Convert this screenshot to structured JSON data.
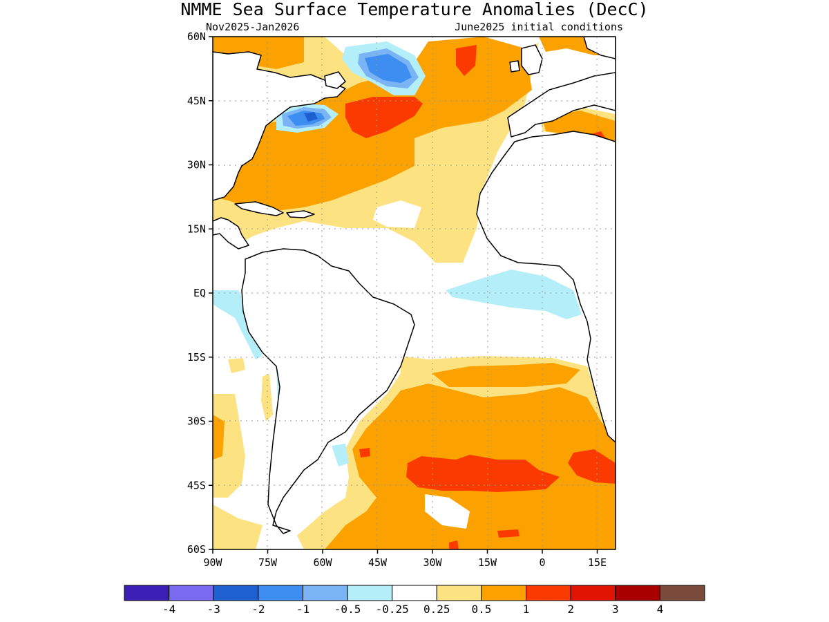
{
  "title": "NMME Sea Surface Temperature Anomalies (DecC)",
  "subtitle_left": "Nov2025-Jan2026",
  "subtitle_right": "June2025 initial conditions",
  "lat_ticks": [
    "60N",
    "45N",
    "30N",
    "15N",
    "EQ",
    "15S",
    "30S",
    "45S",
    "60S"
  ],
  "lon_ticks": [
    "90W",
    "75W",
    "60W",
    "45W",
    "30W",
    "15W",
    "0",
    "15E"
  ],
  "colorbar": {
    "colors": [
      "#3b1fb4",
      "#7a6af0",
      "#1f60d0",
      "#3d8ef0",
      "#7ab4f5",
      "#b4eef8",
      "#ffffff",
      "#fde282",
      "#fba200",
      "#fb3a00",
      "#e01400",
      "#a80000",
      "#7a4a3a"
    ],
    "labels": [
      "-4",
      "-3",
      "-2",
      "-1",
      "-0.5",
      "-0.25",
      "0.25",
      "0.5",
      "1",
      "2",
      "3",
      "4"
    ]
  }
}
